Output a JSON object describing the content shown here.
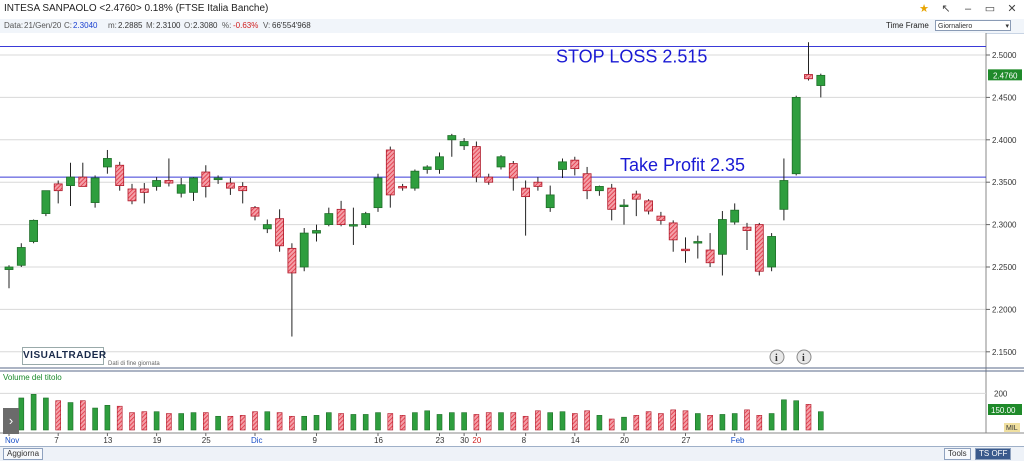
{
  "header": {
    "title": "INTESA SANPAOLO <2.4760> 0.18%  (FTSE Italia Banche)",
    "timeframe_label": "Time Frame",
    "timeframe_value": "Giornaliero"
  },
  "infobar": {
    "date_label": "Data:",
    "date_value": "21/Gen/20",
    "close_label": "C:",
    "close_value": "2.3040",
    "min_label": "m:",
    "min_value": "2.2885",
    "max_label": "M:",
    "max_value": "2.3100",
    "open_label": "O:",
    "open_value": "2.3080",
    "pct_label": "%:",
    "pct_value": "-0.63%",
    "vol_label": "V:",
    "vol_value": "66'554'968"
  },
  "brand": {
    "logo": "VISUALTRADER",
    "subtitle": "Dati di fine giornata"
  },
  "bottombar": {
    "left_button": "Aggiorna",
    "tools": "Tools",
    "ts": "TS OFF"
  },
  "colors": {
    "up": "#2e9e3e",
    "down": "#e03040",
    "annotation": "#1a1ad4",
    "grid": "#d8d8d8"
  },
  "chart_data": {
    "type": "candlestick",
    "price_axis": {
      "min": 2.1,
      "max": 2.5,
      "ticks": [
        "2.5000",
        "2.4500",
        "2.4000",
        "2.3500",
        "2.3000",
        "2.2500",
        "2.2000",
        "2.1500"
      ],
      "last_price_label": "2.4760"
    },
    "volume_axis": {
      "label": "Volume del titolo",
      "ticks": [
        "200"
      ],
      "right_badge": "150.00",
      "right_mil": "MIL"
    },
    "x_labels": [
      {
        "label": "Nov",
        "i": 0,
        "color": "#1a50c8"
      },
      {
        "label": "7",
        "i": 4
      },
      {
        "label": "13",
        "i": 8
      },
      {
        "label": "19",
        "i": 12
      },
      {
        "label": "25",
        "i": 16
      },
      {
        "label": "Dic",
        "i": 20,
        "color": "#1a50c8"
      },
      {
        "label": "9",
        "i": 25
      },
      {
        "label": "16",
        "i": 30
      },
      {
        "label": "23",
        "i": 35
      },
      {
        "label": "30",
        "i": 37
      },
      {
        "label": "20",
        "i": 38,
        "color": "#d02020"
      },
      {
        "label": "8",
        "i": 42
      },
      {
        "label": "14",
        "i": 46
      },
      {
        "label": "20",
        "i": 50
      },
      {
        "label": "27",
        "i": 55
      },
      {
        "label": "Feb",
        "i": 59,
        "color": "#1a50c8"
      }
    ],
    "annotations": [
      {
        "text": "STOP LOSS 2.515",
        "price": 2.51
      },
      {
        "text": "Take Profit 2.35",
        "price": 2.356
      }
    ],
    "candles": [
      {
        "o": 2.247,
        "h": 2.252,
        "l": 2.225,
        "c": 2.25
      },
      {
        "o": 2.252,
        "h": 2.278,
        "l": 2.25,
        "c": 2.273
      },
      {
        "o": 2.28,
        "h": 2.306,
        "l": 2.278,
        "c": 2.305
      },
      {
        "o": 2.313,
        "h": 2.34,
        "l": 2.31,
        "c": 2.34
      },
      {
        "o": 2.348,
        "h": 2.352,
        "l": 2.325,
        "c": 2.34
      },
      {
        "o": 2.346,
        "h": 2.373,
        "l": 2.322,
        "c": 2.356
      },
      {
        "o": 2.356,
        "h": 2.373,
        "l": 2.345,
        "c": 2.345
      },
      {
        "o": 2.326,
        "h": 2.358,
        "l": 2.32,
        "c": 2.355
      },
      {
        "o": 2.368,
        "h": 2.388,
        "l": 2.36,
        "c": 2.378
      },
      {
        "o": 2.37,
        "h": 2.374,
        "l": 2.34,
        "c": 2.346
      },
      {
        "o": 2.342,
        "h": 2.348,
        "l": 2.324,
        "c": 2.328
      },
      {
        "o": 2.342,
        "h": 2.349,
        "l": 2.325,
        "c": 2.338
      },
      {
        "o": 2.345,
        "h": 2.356,
        "l": 2.34,
        "c": 2.352
      },
      {
        "o": 2.352,
        "h": 2.378,
        "l": 2.345,
        "c": 2.349
      },
      {
        "o": 2.337,
        "h": 2.355,
        "l": 2.332,
        "c": 2.347
      },
      {
        "o": 2.338,
        "h": 2.356,
        "l": 2.328,
        "c": 2.355
      },
      {
        "o": 2.362,
        "h": 2.37,
        "l": 2.332,
        "c": 2.345
      },
      {
        "o": 2.353,
        "h": 2.358,
        "l": 2.348,
        "c": 2.355
      },
      {
        "o": 2.349,
        "h": 2.355,
        "l": 2.335,
        "c": 2.343
      },
      {
        "o": 2.345,
        "h": 2.35,
        "l": 2.325,
        "c": 2.34
      },
      {
        "o": 2.32,
        "h": 2.322,
        "l": 2.305,
        "c": 2.31
      },
      {
        "o": 2.295,
        "h": 2.306,
        "l": 2.29,
        "c": 2.3
      },
      {
        "o": 2.307,
        "h": 2.318,
        "l": 2.268,
        "c": 2.275
      },
      {
        "o": 2.272,
        "h": 2.278,
        "l": 2.168,
        "c": 2.243
      },
      {
        "o": 2.25,
        "h": 2.296,
        "l": 2.245,
        "c": 2.29
      },
      {
        "o": 2.29,
        "h": 2.3,
        "l": 2.28,
        "c": 2.293
      },
      {
        "o": 2.3,
        "h": 2.32,
        "l": 2.298,
        "c": 2.313
      },
      {
        "o": 2.318,
        "h": 2.328,
        "l": 2.298,
        "c": 2.3
      },
      {
        "o": 2.3,
        "h": 2.32,
        "l": 2.276,
        "c": 2.3
      },
      {
        "o": 2.3,
        "h": 2.315,
        "l": 2.296,
        "c": 2.313
      },
      {
        "o": 2.32,
        "h": 2.36,
        "l": 2.315,
        "c": 2.355
      },
      {
        "o": 2.388,
        "h": 2.392,
        "l": 2.32,
        "c": 2.335
      },
      {
        "o": 2.345,
        "h": 2.348,
        "l": 2.34,
        "c": 2.344
      },
      {
        "o": 2.343,
        "h": 2.365,
        "l": 2.34,
        "c": 2.363
      },
      {
        "o": 2.365,
        "h": 2.37,
        "l": 2.36,
        "c": 2.368
      },
      {
        "o": 2.365,
        "h": 2.385,
        "l": 2.36,
        "c": 2.38
      },
      {
        "o": 2.4,
        "h": 2.407,
        "l": 2.38,
        "c": 2.405
      },
      {
        "o": 2.393,
        "h": 2.402,
        "l": 2.388,
        "c": 2.398
      },
      {
        "o": 2.392,
        "h": 2.398,
        "l": 2.35,
        "c": 2.356
      },
      {
        "o": 2.356,
        "h": 2.36,
        "l": 2.347,
        "c": 2.35
      },
      {
        "o": 2.368,
        "h": 2.382,
        "l": 2.365,
        "c": 2.38
      },
      {
        "o": 2.372,
        "h": 2.375,
        "l": 2.34,
        "c": 2.355
      },
      {
        "o": 2.343,
        "h": 2.352,
        "l": 2.287,
        "c": 2.333
      },
      {
        "o": 2.35,
        "h": 2.356,
        "l": 2.34,
        "c": 2.345
      },
      {
        "o": 2.32,
        "h": 2.346,
        "l": 2.315,
        "c": 2.335
      },
      {
        "o": 2.365,
        "h": 2.378,
        "l": 2.355,
        "c": 2.374
      },
      {
        "o": 2.376,
        "h": 2.38,
        "l": 2.358,
        "c": 2.366
      },
      {
        "o": 2.36,
        "h": 2.368,
        "l": 2.33,
        "c": 2.34
      },
      {
        "o": 2.34,
        "h": 2.346,
        "l": 2.334,
        "c": 2.345
      },
      {
        "o": 2.343,
        "h": 2.348,
        "l": 2.305,
        "c": 2.318
      },
      {
        "o": 2.322,
        "h": 2.33,
        "l": 2.3,
        "c": 2.323
      },
      {
        "o": 2.336,
        "h": 2.34,
        "l": 2.31,
        "c": 2.33
      },
      {
        "o": 2.328,
        "h": 2.33,
        "l": 2.312,
        "c": 2.316
      },
      {
        "o": 2.31,
        "h": 2.315,
        "l": 2.3,
        "c": 2.305
      },
      {
        "o": 2.302,
        "h": 2.305,
        "l": 2.268,
        "c": 2.282
      },
      {
        "o": 2.271,
        "h": 2.285,
        "l": 2.255,
        "c": 2.27
      },
      {
        "o": 2.279,
        "h": 2.287,
        "l": 2.26,
        "c": 2.28
      },
      {
        "o": 2.27,
        "h": 2.29,
        "l": 2.25,
        "c": 2.255
      },
      {
        "o": 2.265,
        "h": 2.316,
        "l": 2.24,
        "c": 2.306
      },
      {
        "o": 2.303,
        "h": 2.325,
        "l": 2.3,
        "c": 2.317
      },
      {
        "o": 2.297,
        "h": 2.302,
        "l": 2.27,
        "c": 2.293
      },
      {
        "o": 2.3,
        "h": 2.302,
        "l": 2.24,
        "c": 2.245
      },
      {
        "o": 2.25,
        "h": 2.29,
        "l": 2.245,
        "c": 2.286
      },
      {
        "o": 2.318,
        "h": 2.378,
        "l": 2.305,
        "c": 2.352
      },
      {
        "o": 2.36,
        "h": 2.452,
        "l": 2.358,
        "c": 2.45
      },
      {
        "o": 2.477,
        "h": 2.515,
        "l": 2.47,
        "c": 2.472
      },
      {
        "o": 2.464,
        "h": 2.478,
        "l": 2.45,
        "c": 2.476
      }
    ],
    "volumes": [
      105,
      175,
      195,
      175,
      160,
      150,
      160,
      120,
      135,
      130,
      95,
      100,
      100,
      90,
      90,
      95,
      95,
      75,
      75,
      80,
      100,
      100,
      95,
      75,
      75,
      80,
      95,
      90,
      85,
      85,
      95,
      90,
      80,
      95,
      105,
      85,
      95,
      95,
      85,
      95,
      95,
      95,
      75,
      105,
      95,
      100,
      90,
      105,
      80,
      60,
      70,
      80,
      100,
      90,
      110,
      105,
      90,
      80,
      85,
      90,
      110,
      80,
      90,
      165,
      160,
      140,
      100
    ]
  }
}
